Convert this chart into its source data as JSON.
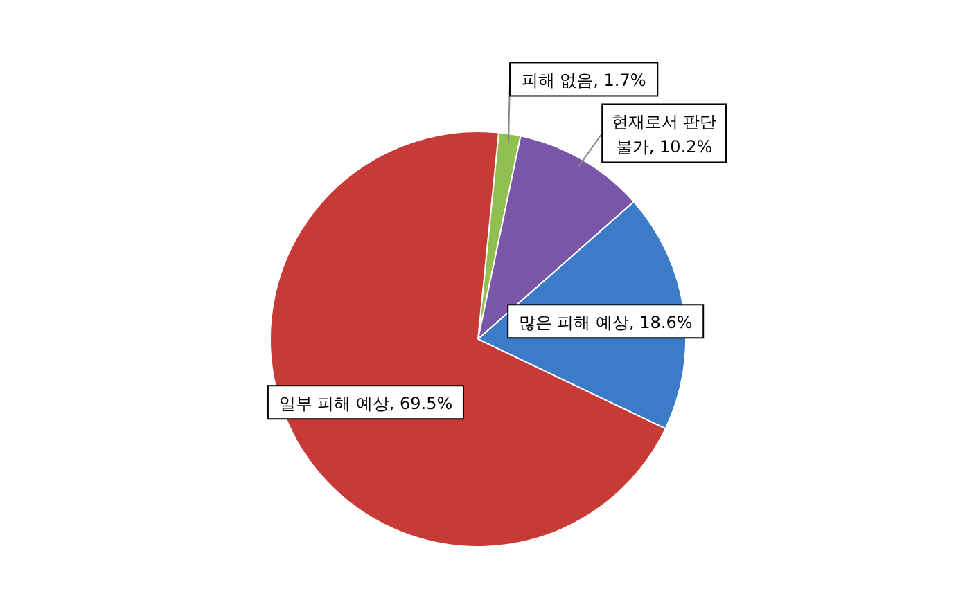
{
  "chart_data": {
    "type": "pie",
    "categories": [
      "피해 없음",
      "현재로서 판단 불가",
      "많은 피해 예상",
      "일부 피해 예상"
    ],
    "values": [
      1.7,
      10.2,
      18.6,
      69.5
    ],
    "value_labels": [
      ", 1.7%",
      ", 10.2%",
      ", 18.6%",
      ", 69.5%"
    ],
    "colors": [
      "#92c050",
      "#7a56a8",
      "#3b7bc8",
      "#c83a36"
    ]
  }
}
